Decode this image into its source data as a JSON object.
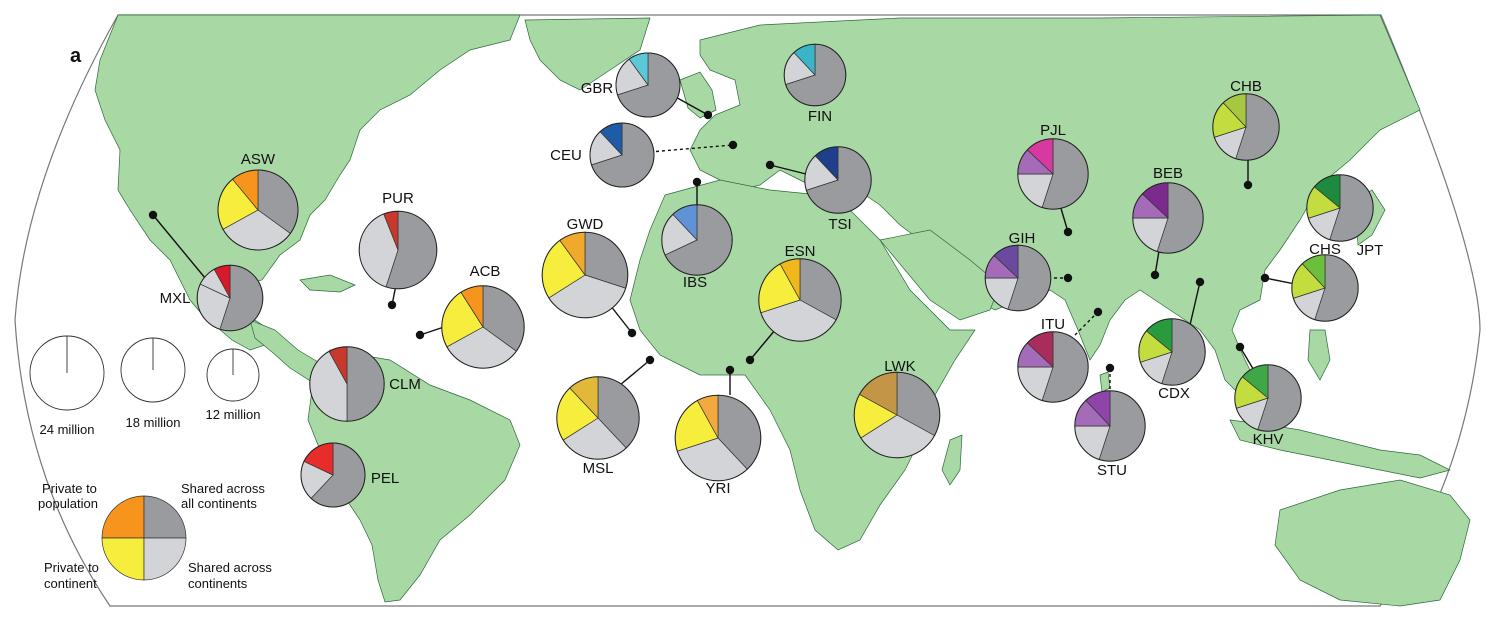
{
  "panel_label": "a",
  "colors": {
    "land": "#a8d8a4",
    "land_stroke": "#2b6b3a",
    "ocean": "#ffffff",
    "shared_all": "#9a9b9f",
    "shared_across": "#d3d4d7",
    "private_continent": "#f7ed3d",
    "private_population_legend": "#f7941d",
    "dot": "#111111"
  },
  "scale_legend": [
    {
      "label": "24 million",
      "value": 24
    },
    {
      "label": "18 million",
      "value": 18
    },
    {
      "label": "12 million",
      "value": 12
    }
  ],
  "category_legend": {
    "private_population": "Private to population",
    "shared_all": "Shared across all continents",
    "private_continent": "Private to continent",
    "shared_across": "Shared across continents"
  },
  "populations": [
    {
      "code": "ASW",
      "size": 1.0,
      "slices": [
        0.35,
        0.32,
        0.22,
        0.11
      ],
      "private_color": "#f7941d",
      "continent_color": "#f7ed3d"
    },
    {
      "code": "MXL",
      "size": 0.82,
      "slices": [
        0.55,
        0.27,
        0.1,
        0.08
      ],
      "private_color": "#d7192c",
      "continent_color": "#d3d4d7"
    },
    {
      "code": "PUR",
      "size": 0.97,
      "slices": [
        0.55,
        0.39,
        0.0,
        0.06
      ],
      "private_color": "#c8382c",
      "continent_color": "#d3d4d7"
    },
    {
      "code": "ACB",
      "size": 1.03,
      "slices": [
        0.35,
        0.32,
        0.24,
        0.09
      ],
      "private_color": "#f7941d",
      "continent_color": "#f7ed3d"
    },
    {
      "code": "CLM",
      "size": 0.93,
      "slices": [
        0.5,
        0.42,
        0.0,
        0.08
      ],
      "private_color": "#c8382c",
      "continent_color": "#d3d4d7"
    },
    {
      "code": "PEL",
      "size": 0.8,
      "slices": [
        0.62,
        0.2,
        0.0,
        0.18
      ],
      "private_color": "#e82b2b",
      "continent_color": "#d3d4d7"
    },
    {
      "code": "GBR",
      "size": 0.8,
      "slices": [
        0.7,
        0.2,
        0.0,
        0.1
      ],
      "private_color": "#5bc8d8",
      "continent_color": "#d3d4d7"
    },
    {
      "code": "FIN",
      "size": 0.77,
      "slices": [
        0.7,
        0.18,
        0.0,
        0.12
      ],
      "private_color": "#3ab5c8",
      "continent_color": "#d3d4d7"
    },
    {
      "code": "CEU",
      "size": 0.8,
      "slices": [
        0.7,
        0.18,
        0.0,
        0.12
      ],
      "private_color": "#1f5ca8",
      "continent_color": "#d3d4d7"
    },
    {
      "code": "TSI",
      "size": 0.83,
      "slices": [
        0.7,
        0.18,
        0.0,
        0.12
      ],
      "private_color": "#1f3f8a",
      "continent_color": "#d3d4d7"
    },
    {
      "code": "IBS",
      "size": 0.88,
      "slices": [
        0.68,
        0.2,
        0.0,
        0.12
      ],
      "private_color": "#5f93d6",
      "continent_color": "#d3d4d7"
    },
    {
      "code": "GWD",
      "size": 1.07,
      "slices": [
        0.3,
        0.36,
        0.24,
        0.1
      ],
      "private_color": "#f0a92a",
      "continent_color": "#f7ed3d"
    },
    {
      "code": "ESN",
      "size": 1.03,
      "slices": [
        0.33,
        0.37,
        0.22,
        0.08
      ],
      "private_color": "#f0b81d",
      "continent_color": "#f7ed3d"
    },
    {
      "code": "MSL",
      "size": 1.03,
      "slices": [
        0.38,
        0.28,
        0.22,
        0.12
      ],
      "private_color": "#e2b83a",
      "continent_color": "#f7ed3d"
    },
    {
      "code": "YRI",
      "size": 1.07,
      "slices": [
        0.38,
        0.32,
        0.22,
        0.08
      ],
      "private_color": "#f3a93d",
      "continent_color": "#f7ed3d"
    },
    {
      "code": "LWK",
      "size": 1.07,
      "slices": [
        0.33,
        0.33,
        0.17,
        0.17
      ],
      "private_color": "#c29646",
      "continent_color": "#f7ed3d"
    },
    {
      "code": "PJL",
      "size": 0.88,
      "slices": [
        0.55,
        0.2,
        0.12,
        0.13
      ],
      "private_color": "#d6399f",
      "continent_color": "#a46cb8"
    },
    {
      "code": "GIH",
      "size": 0.82,
      "slices": [
        0.55,
        0.2,
        0.12,
        0.13
      ],
      "private_color": "#6a4a9e",
      "continent_color": "#a46cb8"
    },
    {
      "code": "ITU",
      "size": 0.88,
      "slices": [
        0.55,
        0.2,
        0.12,
        0.13
      ],
      "private_color": "#a82d5c",
      "continent_color": "#a46cb8"
    },
    {
      "code": "STU",
      "size": 0.88,
      "slices": [
        0.55,
        0.2,
        0.13,
        0.12
      ],
      "private_color": "#8e44a8",
      "continent_color": "#a46cb8"
    },
    {
      "code": "BEB",
      "size": 0.88,
      "slices": [
        0.55,
        0.2,
        0.12,
        0.13
      ],
      "private_color": "#7b2b8e",
      "continent_color": "#a46cb8"
    },
    {
      "code": "CHB",
      "size": 0.83,
      "slices": [
        0.55,
        0.15,
        0.18,
        0.12
      ],
      "private_color": "#a7c740",
      "continent_color": "#c3dd3e"
    },
    {
      "code": "JPT",
      "size": 0.83,
      "slices": [
        0.55,
        0.15,
        0.16,
        0.14
      ],
      "private_color": "#1e8a3e",
      "continent_color": "#c3dd3e"
    },
    {
      "code": "CHS",
      "size": 0.83,
      "slices": [
        0.55,
        0.15,
        0.18,
        0.12
      ],
      "private_color": "#6cbf3a",
      "continent_color": "#c3dd3e"
    },
    {
      "code": "CDX",
      "size": 0.83,
      "slices": [
        0.55,
        0.15,
        0.16,
        0.14
      ],
      "private_color": "#2a9a3e",
      "continent_color": "#c3dd3e"
    },
    {
      "code": "KHV",
      "size": 0.83,
      "slices": [
        0.55,
        0.15,
        0.16,
        0.14
      ],
      "private_color": "#3ea848",
      "continent_color": "#c3dd3e"
    }
  ]
}
